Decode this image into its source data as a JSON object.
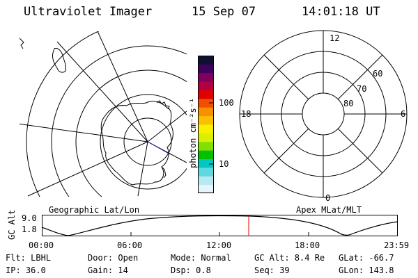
{
  "header": {
    "instrument": "Ultraviolet Imager",
    "date": "15 Sep 07",
    "time": "14:01:18 UT"
  },
  "panels": {
    "left_label": "Geographic Lat/Lon",
    "right_label": "Apex MLat/MLT"
  },
  "colorbar": {
    "unit_label": "photon cm⁻²s⁻¹",
    "tick_100": "100",
    "tick_10": "10",
    "colors": [
      "#e8f4f8",
      "#b8e8f0",
      "#60d8e0",
      "#00c8c0",
      "#00c000",
      "#80e000",
      "#d8f000",
      "#f8f000",
      "#f8c000",
      "#f89000",
      "#f05000",
      "#e00000",
      "#b00040",
      "#800060",
      "#400060",
      "#101030"
    ]
  },
  "polar_grid": {
    "mlt_labels": {
      "top": "12",
      "left": "18",
      "right": "6",
      "bottom": "0"
    },
    "mlat_labels": [
      "60",
      "70",
      "80"
    ]
  },
  "altitude_strip": {
    "axis_label": "GC Alt",
    "ymax_label": "9.0",
    "ymin_label": "1.8",
    "time_ticks": [
      "00:00",
      "06:00",
      "12:00",
      "18:00",
      "23:59"
    ],
    "current_time_marker_color": "#e00000"
  },
  "info": {
    "flt": "Flt: LBHL",
    "ip": "IP: 36.0",
    "door": "Door: Open",
    "gain": "Gain: 14",
    "mode": "Mode: Normal",
    "dsp": "Dsp:    0.8",
    "gcalt": "GC Alt: 8.4 Re",
    "seq": "Seq: 39",
    "glat": "GLat: -66.7",
    "glon": "GLon: 143.8"
  }
}
